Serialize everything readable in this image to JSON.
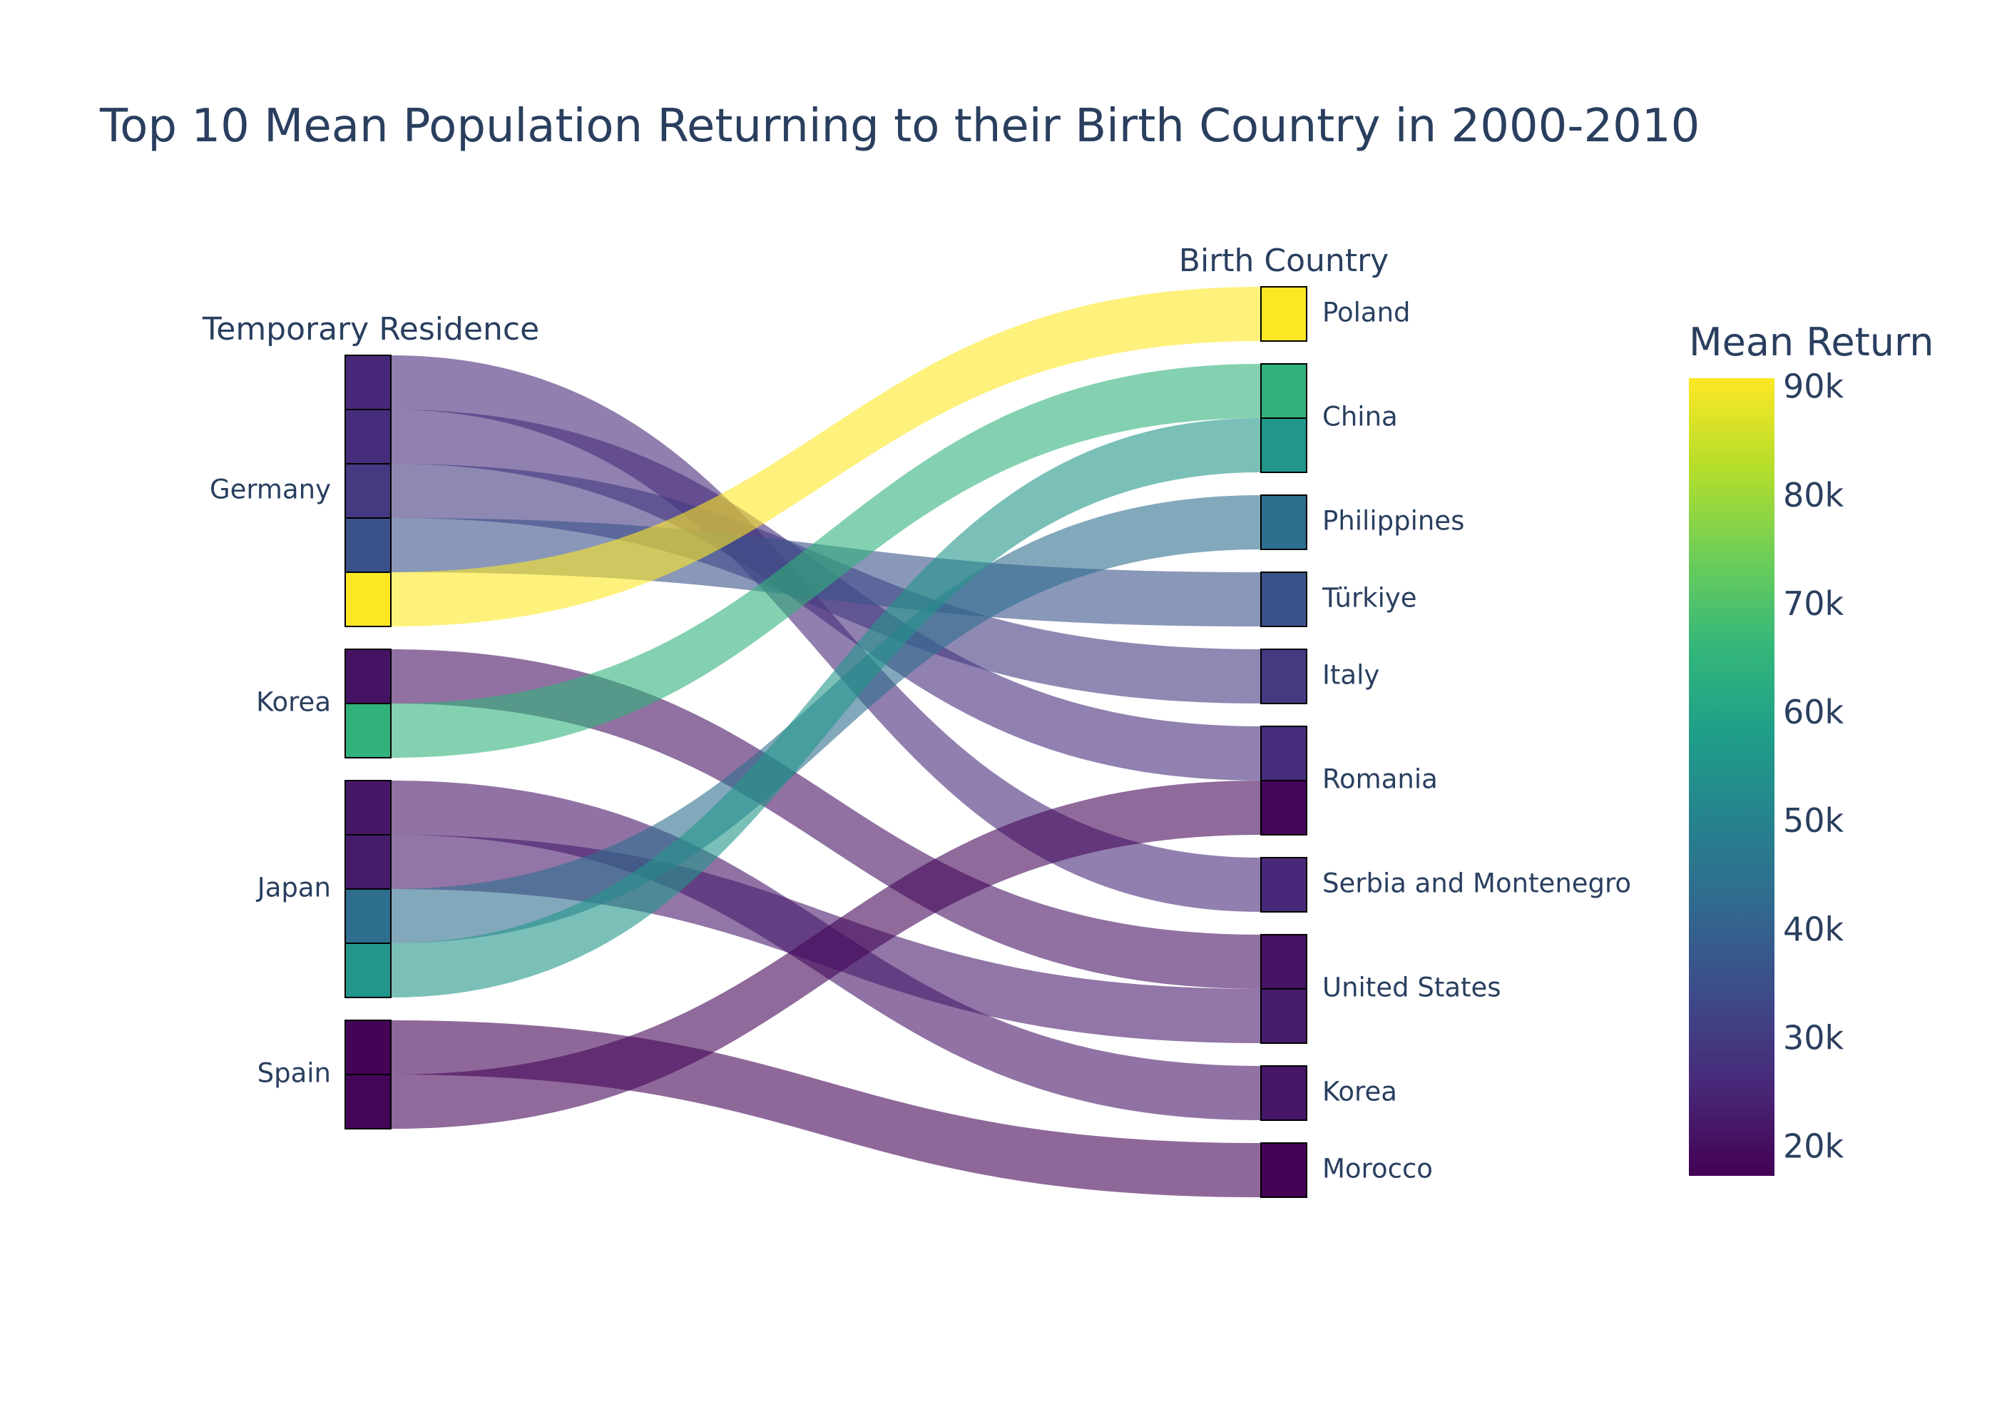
{
  "chart_data": {
    "type": "sankey",
    "title": "Top 10 Mean Population Returning to their Birth Country in 2000-2010",
    "left_axis_title": "Temporary Residence",
    "right_axis_title": "Birth Country",
    "colorbar": {
      "title": "Mean Return",
      "min": 17500,
      "max": 91000,
      "ticks": [
        20000,
        30000,
        40000,
        50000,
        60000,
        70000,
        80000,
        90000
      ],
      "tick_labels": [
        "20k",
        "30k",
        "40k",
        "50k",
        "60k",
        "70k",
        "80k",
        "90k"
      ],
      "colorscale": "Viridis"
    },
    "sources": [
      "Germany",
      "Korea",
      "Japan",
      "Spain"
    ],
    "targets": [
      "Poland",
      "China",
      "Philippines",
      "Türkiye",
      "Italy",
      "Romania",
      "Serbia and Montenegro",
      "United States",
      "Korea",
      "Morocco"
    ],
    "flows": [
      {
        "source": "Germany",
        "target": "Serbia and Montenegro",
        "value": 26000
      },
      {
        "source": "Germany",
        "target": "Romania",
        "value": 27000
      },
      {
        "source": "Germany",
        "target": "Italy",
        "value": 30000
      },
      {
        "source": "Germany",
        "target": "Türkiye",
        "value": 36000
      },
      {
        "source": "Germany",
        "target": "Poland",
        "value": 91000
      },
      {
        "source": "Korea",
        "target": "United States",
        "value": 21000
      },
      {
        "source": "Korea",
        "target": "China",
        "value": 65000
      },
      {
        "source": "Japan",
        "target": "Korea",
        "value": 22000
      },
      {
        "source": "Japan",
        "target": "United States",
        "value": 23000
      },
      {
        "source": "Japan",
        "target": "Philippines",
        "value": 44000
      },
      {
        "source": "Japan",
        "target": "China",
        "value": 56000
      },
      {
        "source": "Spain",
        "target": "Morocco",
        "value": 18000
      },
      {
        "source": "Spain",
        "target": "Romania",
        "value": 18500
      }
    ]
  }
}
